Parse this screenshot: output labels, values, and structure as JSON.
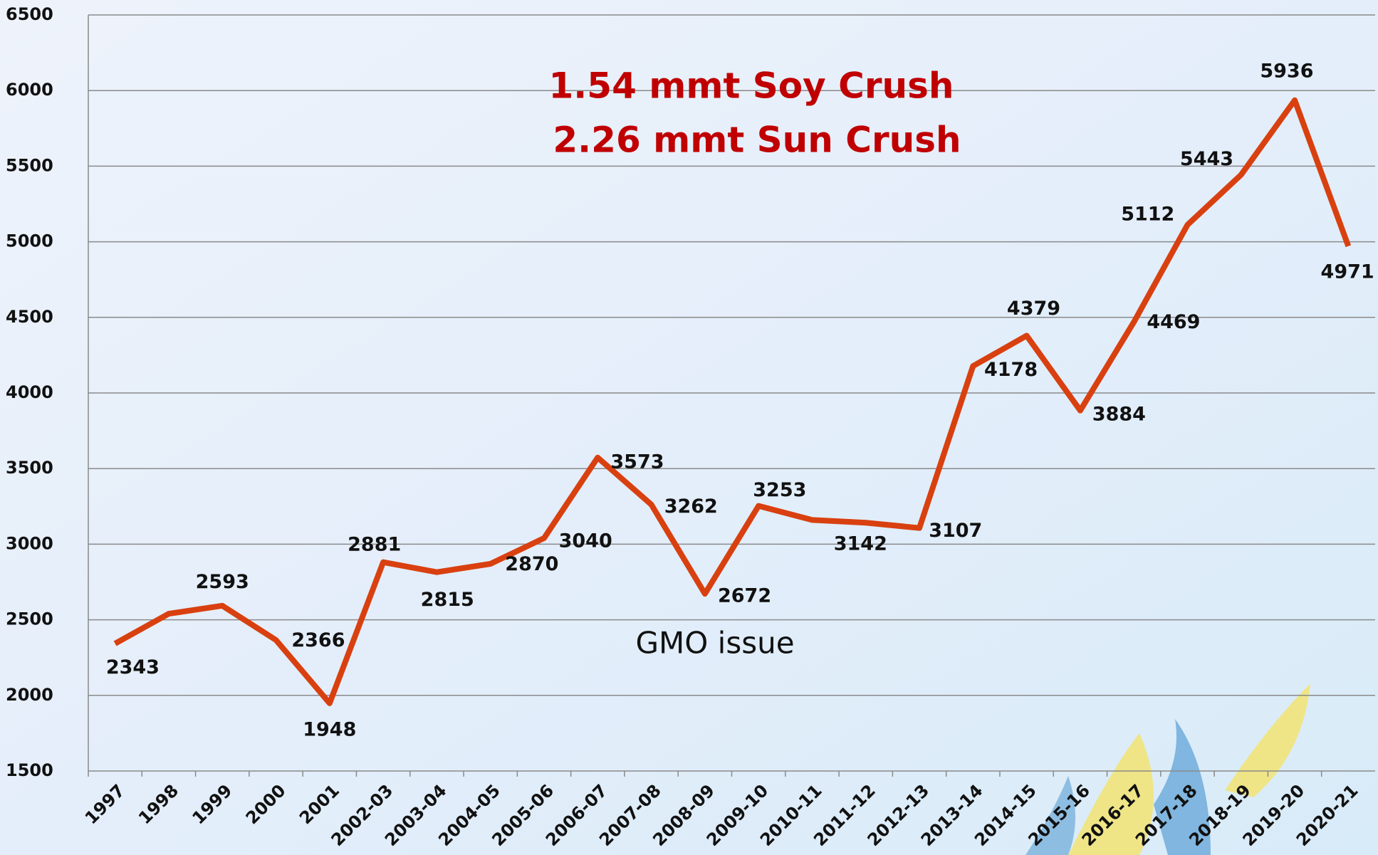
{
  "chart_data": {
    "type": "line",
    "categories": [
      "1997",
      "1998",
      "1999",
      "2000",
      "2001",
      "2002-03",
      "2003-04",
      "2004-05",
      "2005-06",
      "2006-07",
      "2007-08",
      "2008-09",
      "2009-10",
      "2010-11",
      "2011-12",
      "2012-13",
      "2013-14",
      "2014-15",
      "2015-16",
      "2016-17",
      "2017-18",
      "2018-19",
      "2019-20",
      "2020-21"
    ],
    "series": [
      {
        "color": "#d9400f",
        "values": [
          2343,
          2540,
          2593,
          2366,
          1948,
          2881,
          2815,
          2870,
          3040,
          3573,
          3262,
          2672,
          3253,
          3160,
          3142,
          3107,
          4178,
          4379,
          3884,
          4469,
          5112,
          5443,
          5936,
          4971
        ],
        "value_labels": [
          "2343",
          null,
          "2593",
          "2366",
          "1948",
          "2881",
          "2815",
          "2870",
          "3040",
          "3573",
          "3262",
          "2672",
          "3253",
          null,
          "3142",
          "3107",
          "4178",
          "4379",
          "3884",
          "4469",
          "5112",
          "5443",
          "5936",
          "4971"
        ]
      }
    ],
    "ylim": [
      1500,
      6500
    ],
    "yticks": [
      1500,
      2000,
      2500,
      3000,
      3500,
      4000,
      4500,
      5000,
      5500,
      6000,
      6500
    ],
    "grid": true,
    "annotations": [
      "1.54 mmt Soy Crush",
      "2.26 mmt Sun Crush",
      "GMO  issue"
    ]
  }
}
